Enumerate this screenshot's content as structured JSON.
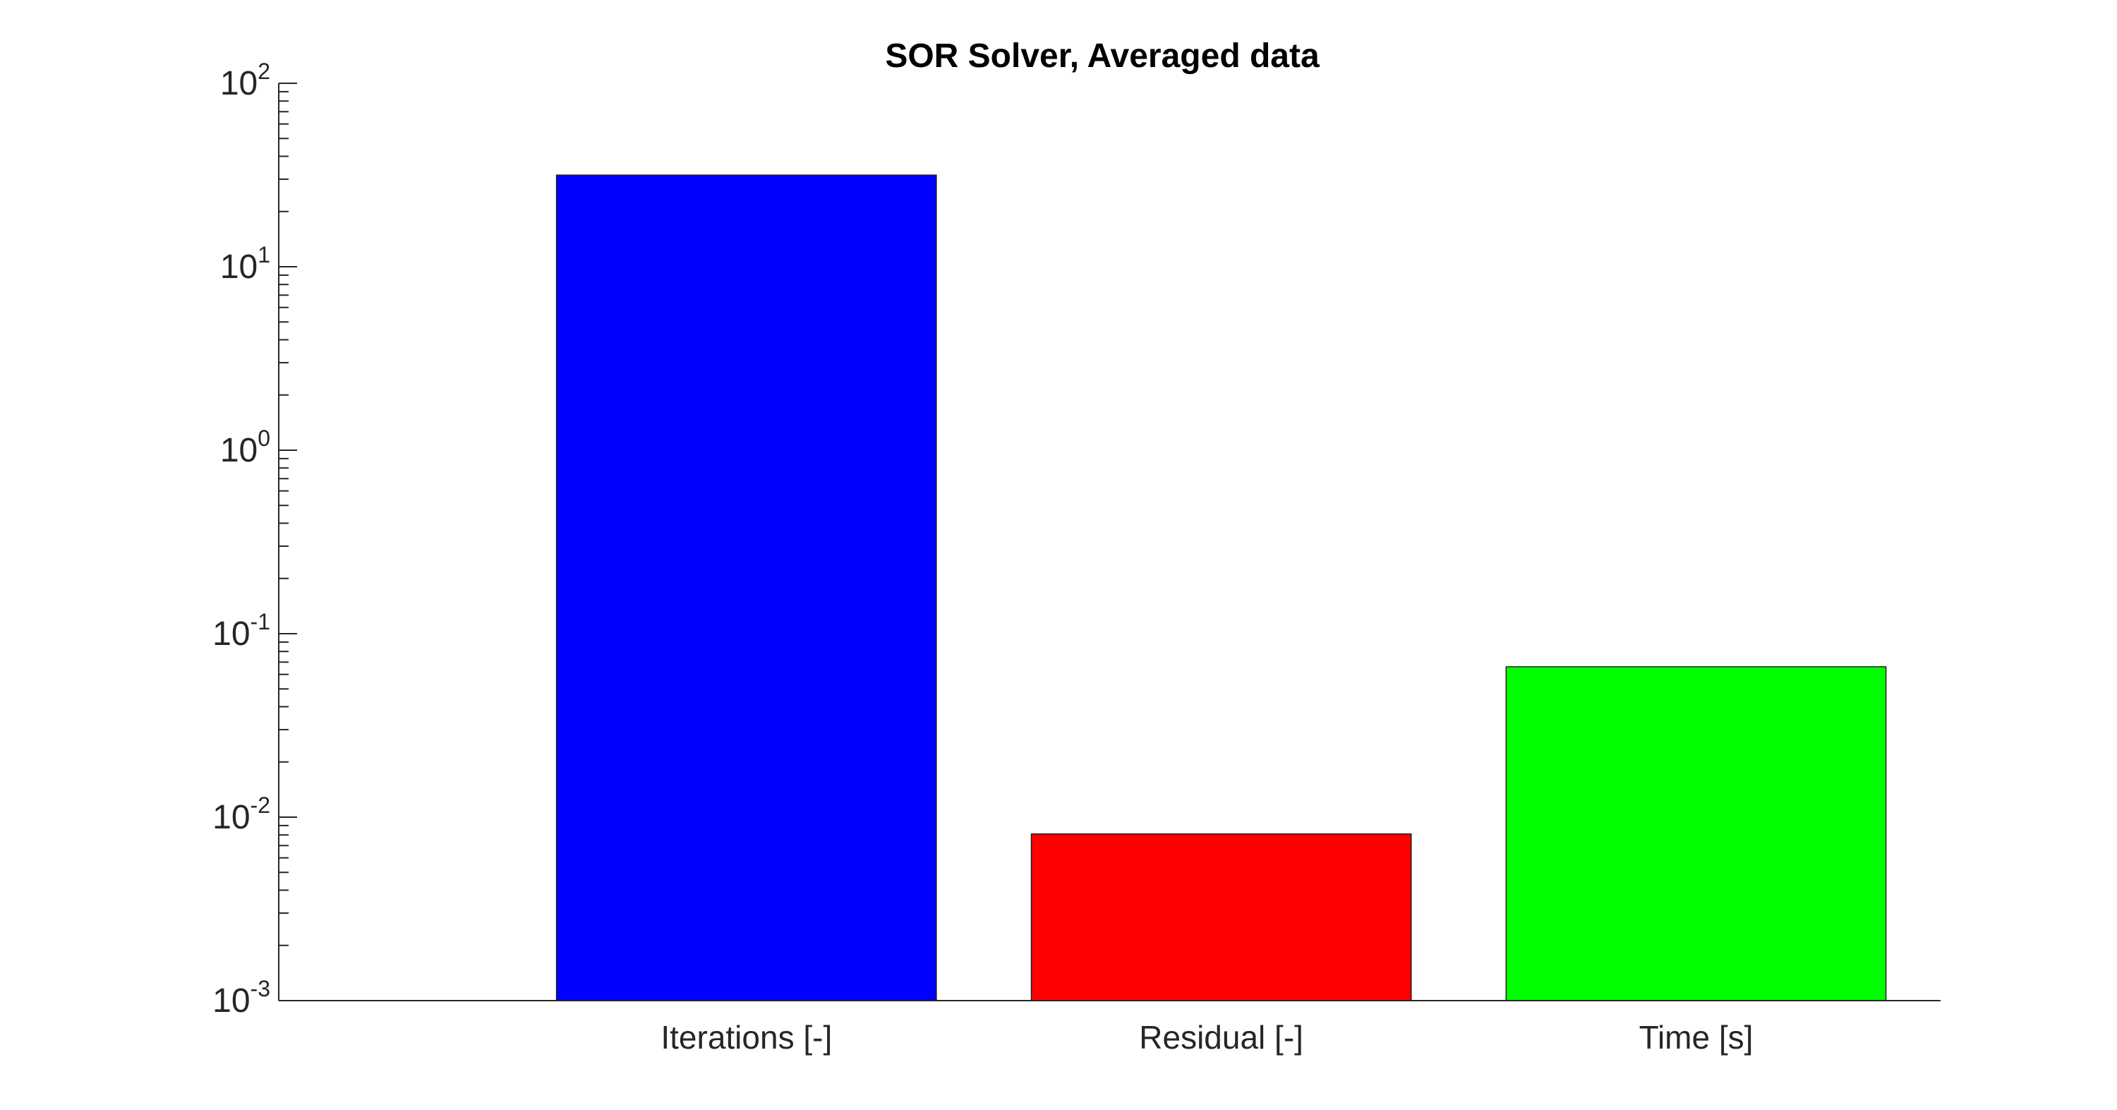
{
  "chart_data": {
    "type": "bar",
    "title": "SOR Solver, Averaged data",
    "xlabel": "",
    "ylabel": "",
    "yscale": "log",
    "ylim": [
      0.001,
      100
    ],
    "ytick_values": [
      0.001,
      0.01,
      0.1,
      1,
      10,
      100
    ],
    "ytick_labels": [
      {
        "base": "10",
        "exp": "-3"
      },
      {
        "base": "10",
        "exp": "-2"
      },
      {
        "base": "10",
        "exp": "-1"
      },
      {
        "base": "10",
        "exp": "0"
      },
      {
        "base": "10",
        "exp": "1"
      },
      {
        "base": "10",
        "exp": "2"
      }
    ],
    "categories": [
      "Iterations [-]",
      "Residual [-]",
      "Time [s]"
    ],
    "values": [
      31.6,
      0.0081,
      0.066
    ],
    "colors": [
      "#0000ff",
      "#ff0000",
      "#00ff00"
    ],
    "grid": false,
    "legend": "none"
  }
}
